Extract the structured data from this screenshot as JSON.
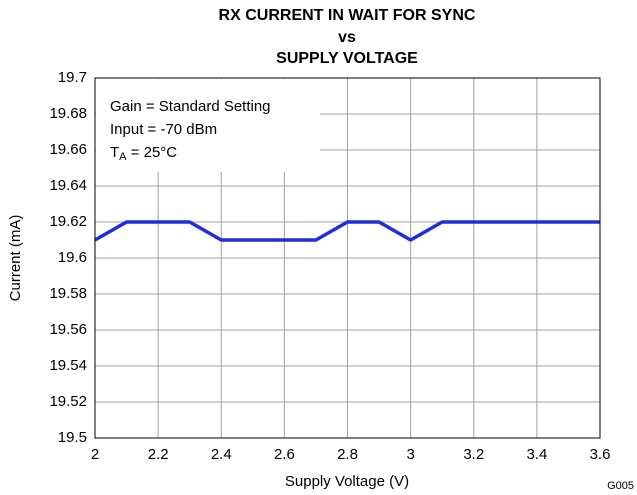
{
  "chart_data": {
    "type": "line",
    "title": [
      "RX CURRENT IN WAIT FOR SYNC",
      "vs",
      "SUPPLY VOLTAGE"
    ],
    "x_label": "Supply Voltage (V)",
    "y_label": "Current (mA)",
    "figure_id": "G005",
    "annotations": {
      "gain": "Gain = Standard Setting",
      "input": "Input = -70 dBm",
      "temperature": {
        "symbol": "T",
        "subscript": "A",
        "value": " = 25°C"
      }
    },
    "x": [
      2.0,
      2.1,
      2.2,
      2.3,
      2.4,
      2.5,
      2.6,
      2.7,
      2.8,
      2.9,
      3.0,
      3.1,
      3.2,
      3.3,
      3.4,
      3.5,
      3.6
    ],
    "series": [
      {
        "color": "#1f2fd8",
        "values": [
          19.61,
          19.62,
          19.62,
          19.62,
          19.61,
          19.61,
          19.61,
          19.61,
          19.62,
          19.62,
          19.61,
          19.62,
          19.62,
          19.62,
          19.62,
          19.62,
          19.62
        ]
      }
    ],
    "xlim": [
      2,
      3.6
    ],
    "xticks": [
      2,
      2.2,
      2.4,
      2.6,
      2.8,
      3,
      3.2,
      3.4,
      3.6
    ],
    "ylim": [
      19.5,
      19.7
    ],
    "yticks": [
      19.5,
      19.52,
      19.54,
      19.56,
      19.58,
      19.6,
      19.62,
      19.64,
      19.66,
      19.68,
      19.7
    ],
    "grid": true
  }
}
